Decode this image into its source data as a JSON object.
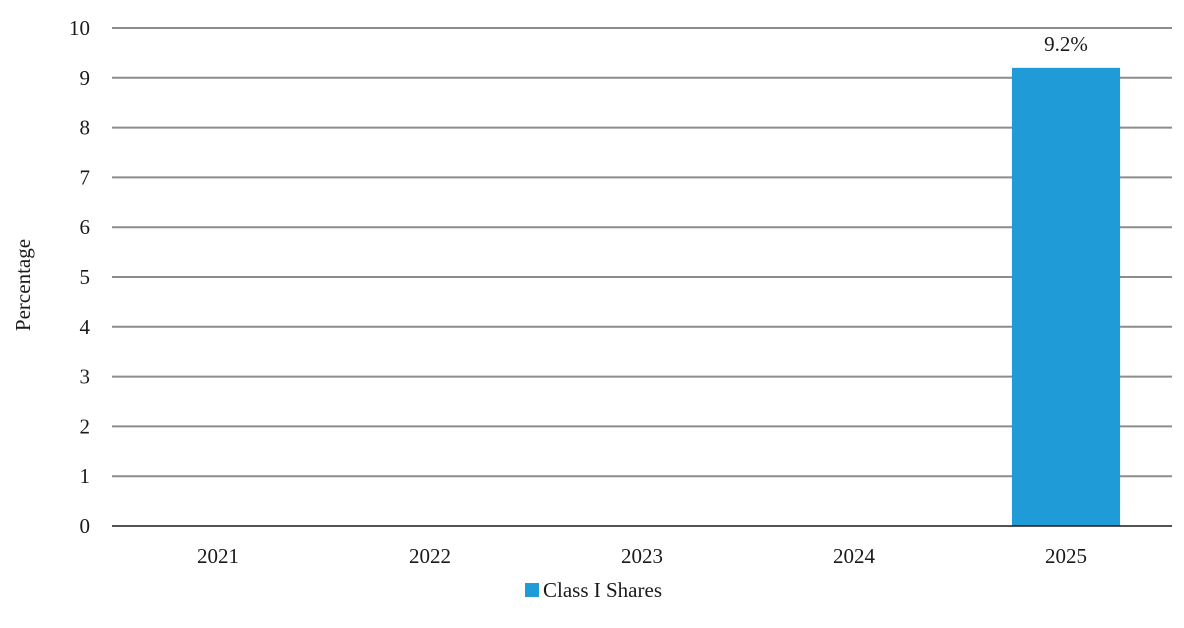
{
  "chart_data": {
    "type": "bar",
    "categories": [
      "2021",
      "2022",
      "2023",
      "2024",
      "2025"
    ],
    "series": [
      {
        "name": "Class I Shares",
        "values": [
          null,
          null,
          null,
          null,
          9.2
        ],
        "data_labels": [
          "",
          "",
          "",
          "",
          "9.2%"
        ],
        "color": "#1f9bd7"
      }
    ],
    "xlabel": "",
    "ylabel": "Percentage",
    "ylim": [
      0,
      10
    ],
    "yticks": [
      "0",
      "1",
      "2",
      "3",
      "4",
      "5",
      "6",
      "7",
      "8",
      "9",
      "10"
    ],
    "grid": true,
    "legend_position": "bottom-center"
  }
}
